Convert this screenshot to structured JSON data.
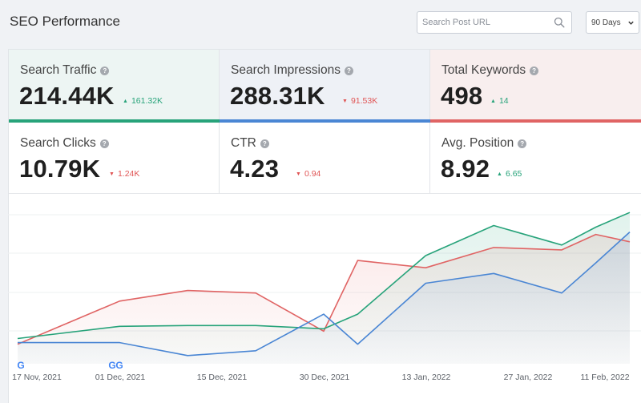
{
  "header": {
    "title": "SEO Performance",
    "search_placeholder": "Search Post URL",
    "range_selected": "90 Days"
  },
  "metrics": {
    "search_traffic": {
      "label": "Search Traffic",
      "value": "214.44K",
      "delta": "161.32K",
      "direction": "up",
      "color": "#27a37a"
    },
    "search_impressions": {
      "label": "Search Impressions",
      "value": "288.31K",
      "delta": "91.53K",
      "direction": "down",
      "color": "#4a86d4"
    },
    "total_keywords": {
      "label": "Total Keywords",
      "value": "498",
      "delta": "14",
      "direction": "up",
      "color": "#e06464"
    },
    "search_clicks": {
      "label": "Search Clicks",
      "value": "10.79K",
      "delta": "1.24K",
      "direction": "down"
    },
    "ctr": {
      "label": "CTR",
      "value": "4.23",
      "delta": "0.94",
      "direction": "down"
    },
    "avg_position": {
      "label": "Avg. Position",
      "value": "8.92",
      "delta": "6.65",
      "direction": "up"
    }
  },
  "icons": {
    "search": "search-icon",
    "dropdown": "chevron-down-icon",
    "help": "help-icon",
    "google": "google-icon"
  },
  "chart_data": {
    "type": "area",
    "categories": [
      "17 Nov, 2021",
      "01 Dec, 2021",
      "15 Dec, 2021",
      "30 Dec, 2021",
      "13 Jan, 2022",
      "27 Jan, 2022",
      "11 Feb, 2022"
    ],
    "x": [
      "2021-11-17",
      "2021-11-22",
      "2021-11-27",
      "2021-12-02",
      "2021-12-07",
      "2021-12-12",
      "2021-12-17",
      "2021-12-22",
      "2021-12-27",
      "2022-01-01",
      "2022-01-06",
      "2022-01-11",
      "2022-01-16",
      "2022-01-21",
      "2022-01-26",
      "2022-01-31",
      "2022-02-05",
      "2022-02-10",
      "2022-02-15"
    ],
    "series": [
      {
        "color": "#e06464",
        "values": [
          24,
          0,
          0,
          77,
          0,
          90,
          0,
          87,
          0,
          40,
          127,
          0,
          118,
          0,
          143,
          0,
          140,
          159,
          150
        ]
      },
      {
        "color": "#27a37a",
        "values": [
          31,
          0,
          0,
          46,
          0,
          47,
          0,
          47,
          0,
          43,
          61,
          0,
          133,
          0,
          170,
          0,
          146,
          168,
          186
        ]
      },
      {
        "color": "#4a86d4",
        "values": [
          26,
          0,
          0,
          26,
          0,
          10,
          0,
          16,
          0,
          61,
          24,
          0,
          99,
          0,
          111,
          0,
          87,
          124,
          162
        ]
      }
    ],
    "google_markers": [
      "17 Nov, 2021",
      "01 Dec, 2021",
      "01 Dec, 2021"
    ],
    "grid": true,
    "legend": false
  }
}
